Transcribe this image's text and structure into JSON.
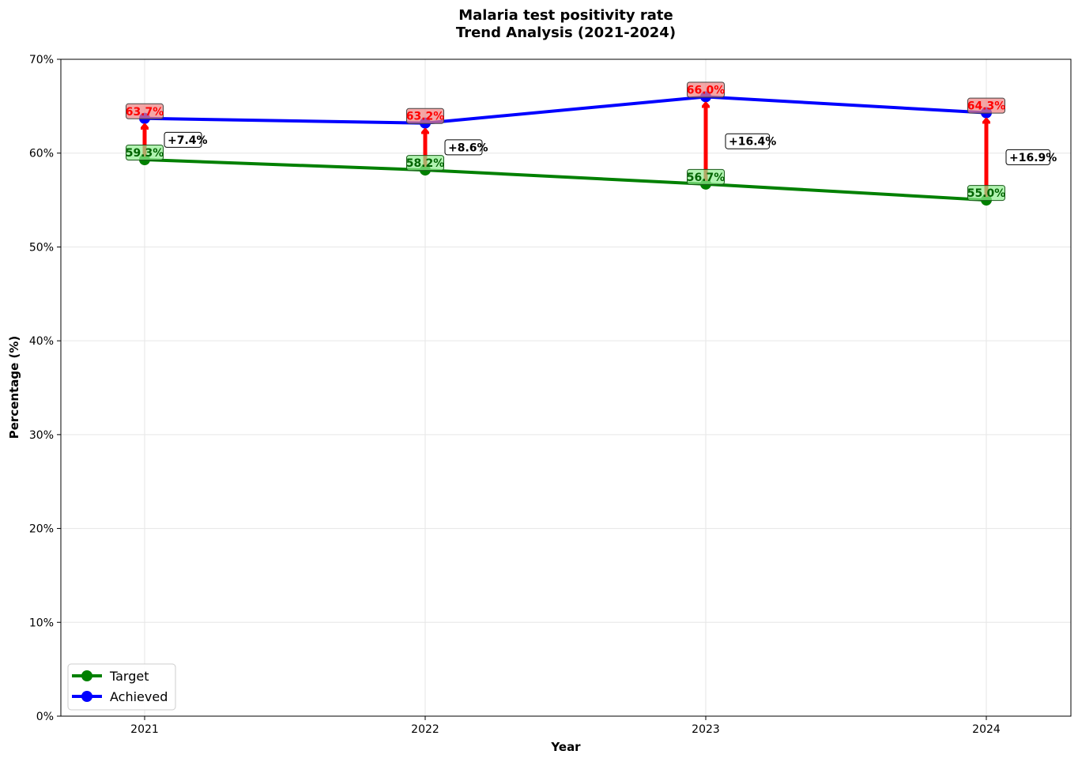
{
  "chart_data": {
    "type": "line",
    "title": "Malaria test positivity rate",
    "subtitle": "Trend Analysis (2021-2024)",
    "xlabel": "Year",
    "ylabel": "Percentage (%)",
    "categories": [
      "2021",
      "2022",
      "2023",
      "2024"
    ],
    "ylim": [
      0,
      70
    ],
    "yticks": [
      "0%",
      "10%",
      "20%",
      "30%",
      "40%",
      "50%",
      "60%",
      "70%"
    ],
    "grid": true,
    "legend_position": "lower-left",
    "series": [
      {
        "name": "Target",
        "color": "#008000",
        "values": [
          59.3,
          58.2,
          56.7,
          55.0
        ],
        "labels": [
          "59.3%",
          "58.2%",
          "56.7%",
          "55.0%"
        ]
      },
      {
        "name": "Achieved",
        "color": "#0000ff",
        "values": [
          63.7,
          63.2,
          66.0,
          64.3
        ],
        "labels": [
          "63.7%",
          "63.2%",
          "66.0%",
          "64.3%"
        ]
      }
    ],
    "differences": [
      "+7.4%",
      "+8.6%",
      "+16.4%",
      "+16.9%"
    ],
    "difference_arrow_color": "#ff0000"
  }
}
